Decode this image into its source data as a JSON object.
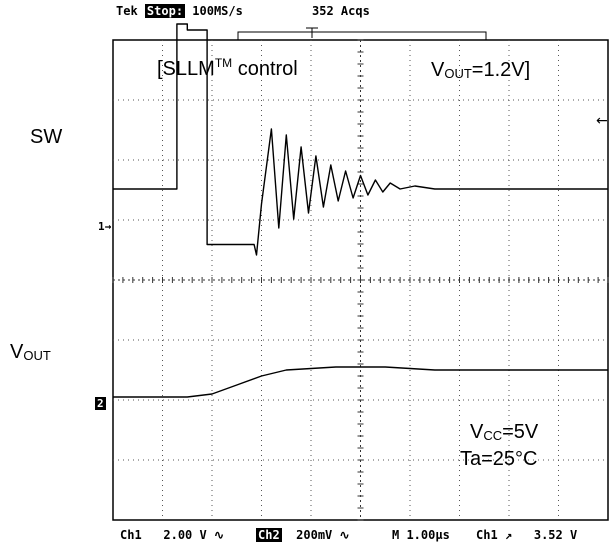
{
  "header": {
    "brand": "Tek",
    "run_state": "Stop:",
    "sample_rate": "100MS/s",
    "acquisitions": "352 Acqs"
  },
  "annotations": {
    "mode_prefix": "[SLLM",
    "mode_sup": "TM",
    "mode_suffix": " control",
    "vout_setting_prefix": "V",
    "vout_setting_sub": "OUT",
    "vout_setting_value": "=1.2V]",
    "sw_label": "SW",
    "vout_label_prefix": "V",
    "vout_label_sub": "OUT",
    "vcc_prefix": "V",
    "vcc_sub": "CC",
    "vcc_value": "=5V",
    "ta": "Ta=25°C"
  },
  "footer": {
    "ch1": "Ch1",
    "ch1_scale": "2.00 V",
    "ch2": "Ch2",
    "ch2_scale": "200mV",
    "timebase": "M 1.00µs",
    "trigger_source": "Ch1",
    "trigger_level": "3.52 V"
  },
  "markers": {
    "ch1": "1",
    "ch2": "2"
  },
  "chart_data": {
    "type": "line",
    "x_unit": "µs",
    "xlim": [
      -2.5,
      7.5
    ],
    "divisions": {
      "horizontal": 10,
      "vertical": 8
    },
    "grid": true,
    "series": [
      {
        "name": "SW",
        "scale": "2.00 V/div",
        "x": [
          -2.5,
          -1.25,
          -1.21,
          -1.21,
          -1.0,
          -1.0,
          -0.6,
          -0.6,
          0.35,
          0.4,
          0.5,
          0.7,
          0.85,
          1.0,
          1.15,
          1.3,
          1.45,
          1.6,
          1.75,
          1.9,
          2.05,
          2.2,
          2.35,
          2.5,
          2.65,
          2.8,
          2.95,
          3.1,
          3.3,
          3.6,
          4.0,
          5.0,
          7.5
        ],
        "y": [
          0.0,
          0.0,
          0.0,
          5.5,
          5.5,
          5.3,
          5.3,
          -1.85,
          -1.85,
          -2.2,
          -0.5,
          2.0,
          -1.3,
          1.8,
          -1.0,
          1.4,
          -0.8,
          1.1,
          -0.6,
          0.8,
          -0.4,
          0.6,
          -0.3,
          0.45,
          -0.2,
          0.3,
          -0.1,
          0.2,
          0.0,
          0.1,
          0.0,
          0.0,
          0.0
        ]
      },
      {
        "name": "VOUT",
        "scale": "200mV/div",
        "x": [
          -2.5,
          -1.0,
          -0.5,
          0.0,
          0.5,
          1.0,
          2.0,
          3.0,
          4.0,
          5.0,
          7.5
        ],
        "y": [
          0.0,
          0.0,
          0.01,
          0.04,
          0.07,
          0.09,
          0.1,
          0.1,
          0.09,
          0.09,
          0.09
        ]
      }
    ]
  }
}
